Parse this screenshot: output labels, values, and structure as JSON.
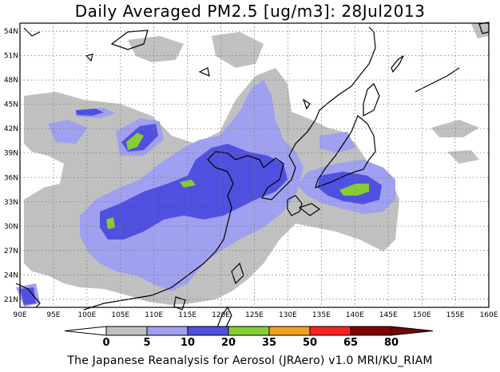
{
  "title": "Daily Averaged PM2.5 [ug/m3]: 28Jul2013",
  "footer": "The Japanese Reanalysis for Aerosol (JRAero) v1.0 MRI/KU_RIAM",
  "map": {
    "lon_range": [
      90,
      160
    ],
    "lat_range": [
      20,
      55
    ],
    "lon_ticks": [
      "90E",
      "95E",
      "100E",
      "105E",
      "110E",
      "115E",
      "120E",
      "125E",
      "130E",
      "135E",
      "140E",
      "145E",
      "150E",
      "155E",
      "160E"
    ],
    "lat_ticks": [
      "54N",
      "51N",
      "48N",
      "45N",
      "42N",
      "39N",
      "36N",
      "33N",
      "30N",
      "27N",
      "24N",
      "21N"
    ],
    "grid": "dotted"
  },
  "colorbar": {
    "labels": [
      "0",
      "5",
      "10",
      "20",
      "35",
      "50",
      "65",
      "80"
    ],
    "colors": [
      "#ffffff",
      "#c0c0c0",
      "#a0a0f0",
      "#5050e0",
      "#88cc33",
      "#f0a020",
      "#ff2020",
      "#800000"
    ],
    "triangle_left": "#ffffff",
    "triangle_right": "#6a0a0a"
  }
}
